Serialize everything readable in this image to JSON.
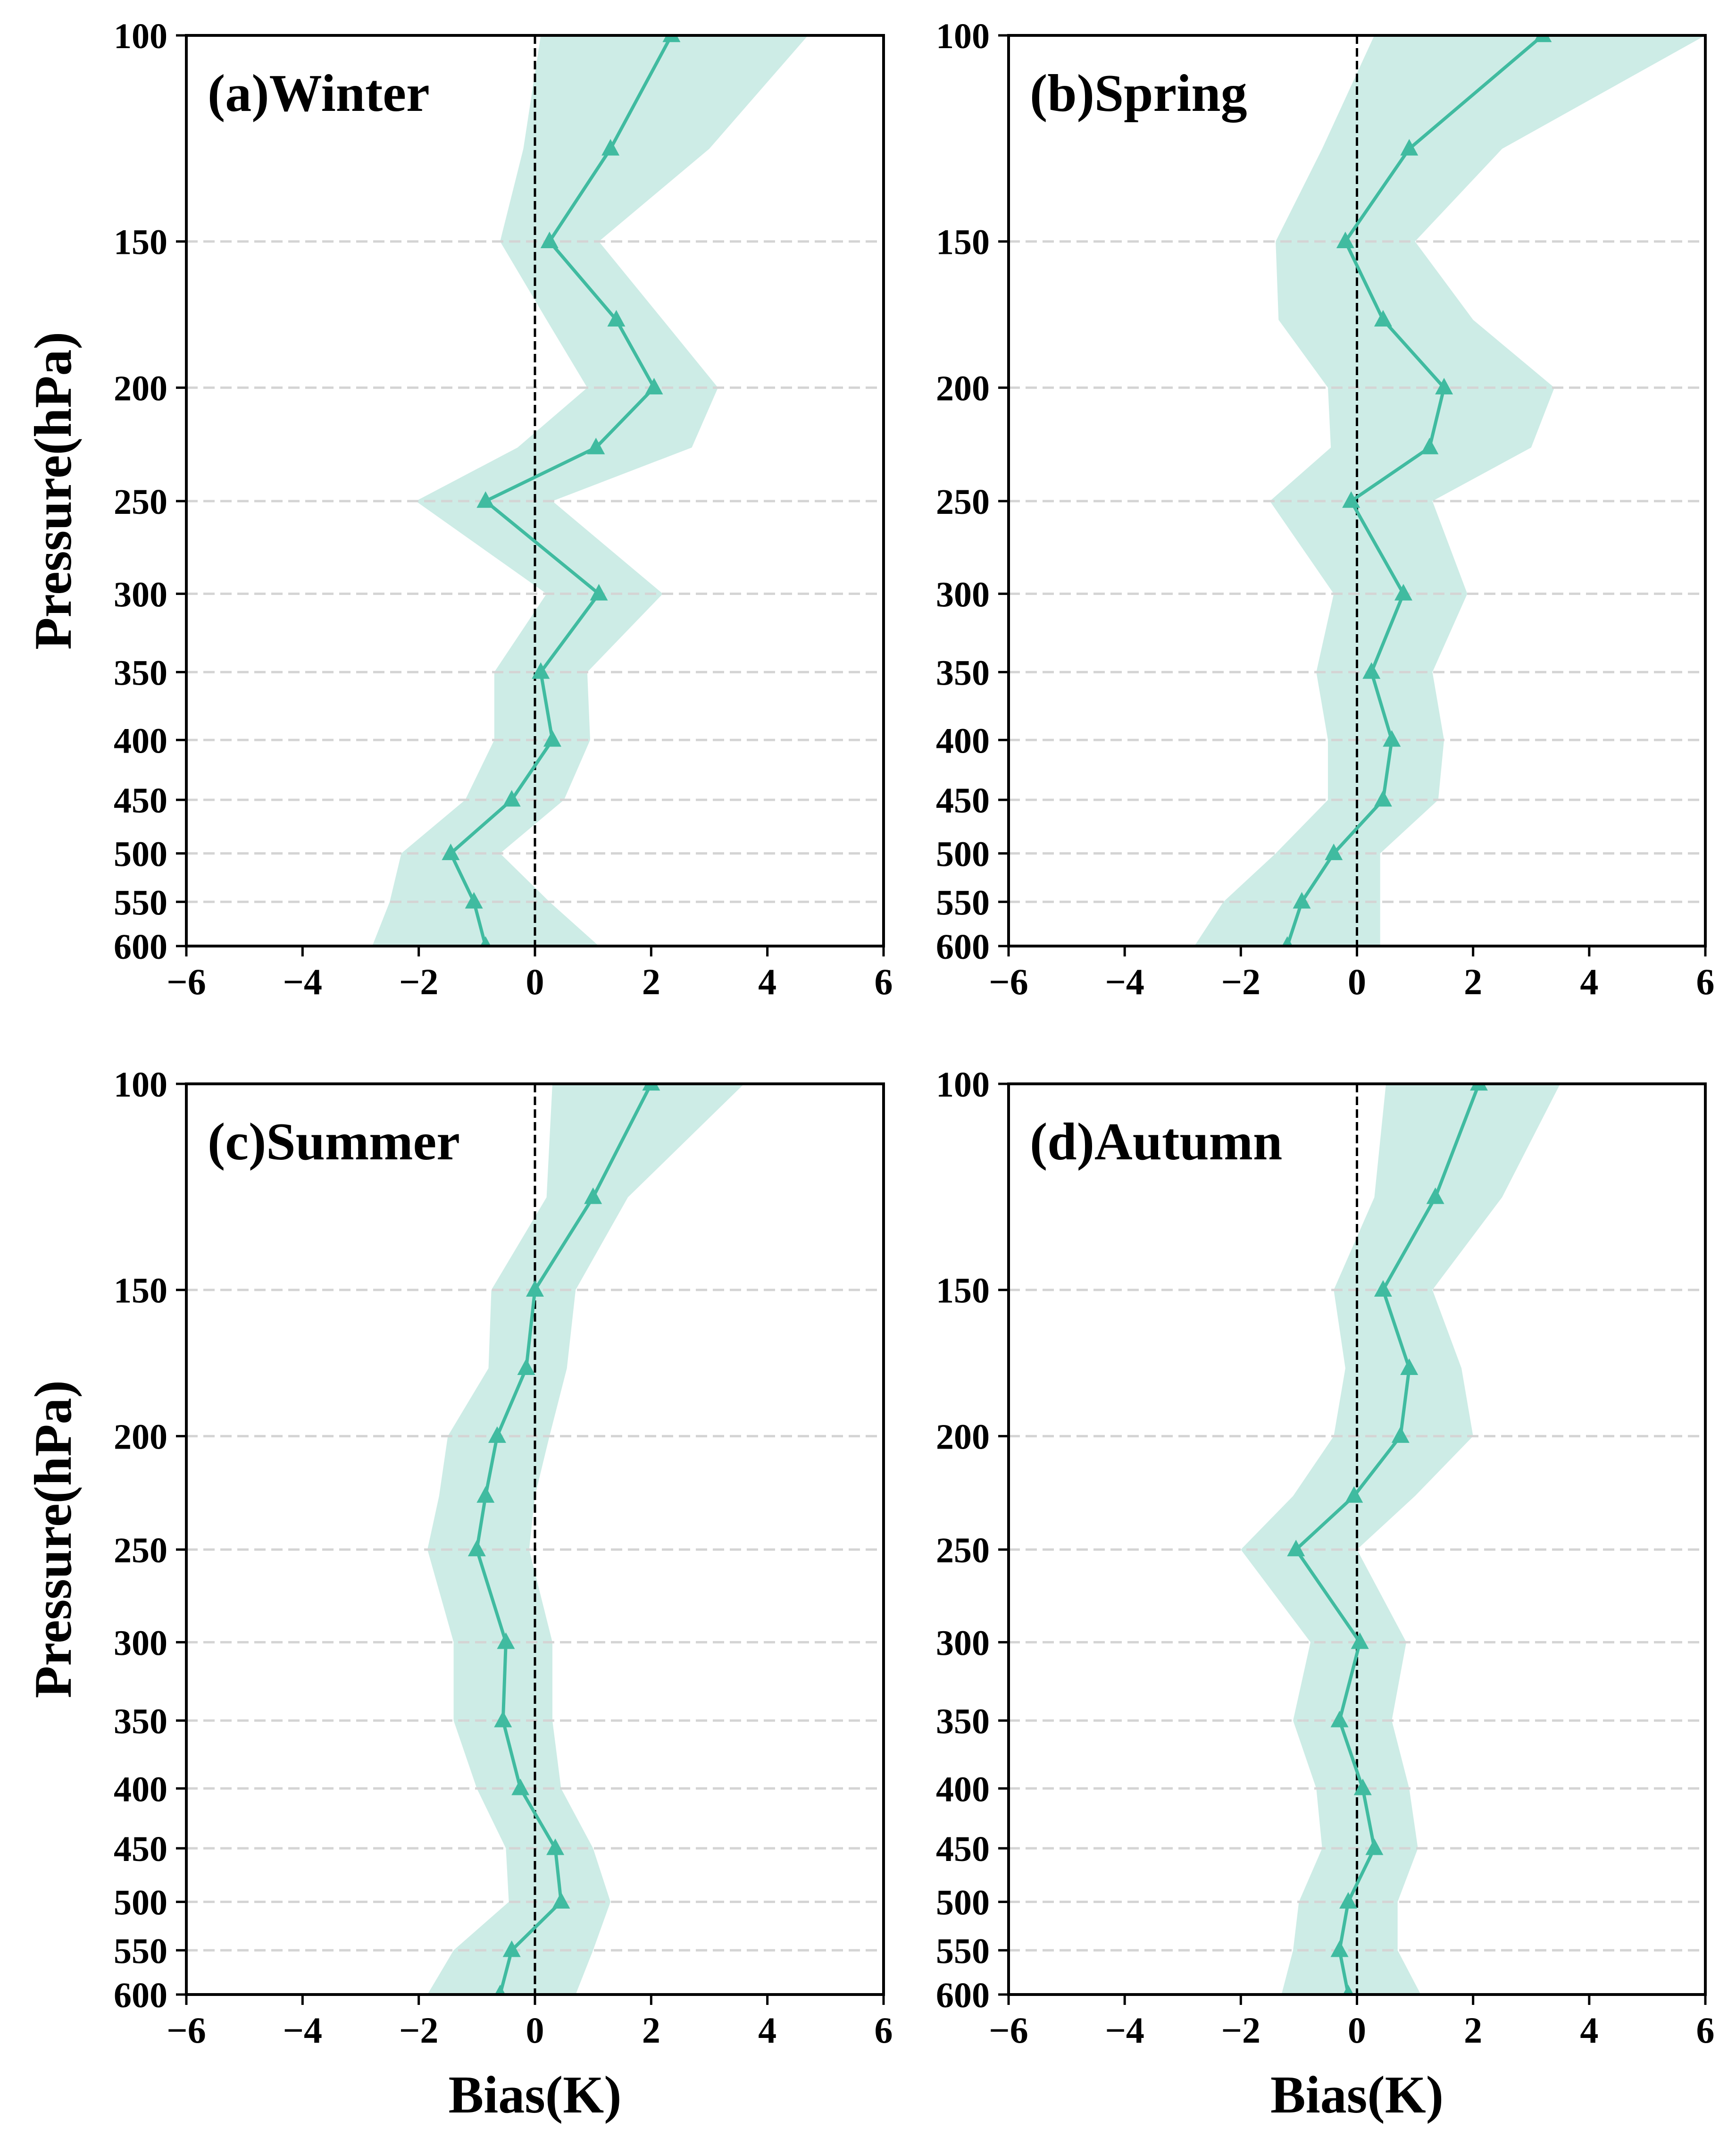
{
  "figure": {
    "colors": {
      "line": "#40bba0",
      "band": "#cdece6",
      "grid": "#d4d4d4",
      "zero_line": "#000000"
    }
  },
  "chart_data": [
    {
      "type": "line",
      "title": "(a)Winter",
      "xlabel": "",
      "ylabel": "Pressure(hPa)",
      "xlim": [
        -6,
        6
      ],
      "ylim": [
        600,
        100
      ],
      "yscale": "log",
      "xticks": [
        "−6",
        "−4",
        "−2",
        "0",
        "2",
        "4",
        "6"
      ],
      "yticks": [
        "100",
        "150",
        "200",
        "250",
        "300",
        "350",
        "400",
        "450",
        "500",
        "550",
        "600"
      ],
      "pressure": [
        100,
        125,
        150,
        175,
        200,
        225,
        250,
        300,
        350,
        400,
        450,
        500,
        550,
        600
      ],
      "series": [
        {
          "name": "mean bias",
          "marker": "triangle",
          "values": [
            2.35,
            1.3,
            0.25,
            1.4,
            2.05,
            1.05,
            -0.85,
            1.1,
            0.1,
            0.3,
            -0.4,
            -1.45,
            -1.05,
            -0.85
          ]
        },
        {
          "name": "lower bound",
          "values": [
            0.1,
            -0.2,
            -0.6,
            0.2,
            0.9,
            -0.3,
            -2.05,
            0.2,
            -0.7,
            -0.7,
            -1.2,
            -2.3,
            -2.5,
            -2.8
          ]
        },
        {
          "name": "upper bound",
          "values": [
            4.7,
            3.0,
            1.1,
            2.2,
            3.15,
            2.7,
            0.3,
            2.2,
            0.9,
            0.95,
            0.5,
            -0.6,
            0.25,
            1.1
          ]
        }
      ],
      "grid": "y-dashed",
      "reference_line": {
        "x": 0,
        "style": "dashed"
      }
    },
    {
      "type": "line",
      "title": "(b)Spring",
      "xlabel": "",
      "ylabel": "",
      "xlim": [
        -6,
        6
      ],
      "ylim": [
        600,
        100
      ],
      "yscale": "log",
      "xticks": [
        "−6",
        "−4",
        "−2",
        "0",
        "2",
        "4",
        "6"
      ],
      "yticks": [
        "100",
        "150",
        "200",
        "250",
        "300",
        "350",
        "400",
        "450",
        "500",
        "550",
        "600"
      ],
      "pressure": [
        100,
        125,
        150,
        175,
        200,
        225,
        250,
        300,
        350,
        400,
        450,
        500,
        550,
        600
      ],
      "series": [
        {
          "name": "mean bias",
          "marker": "triangle",
          "values": [
            3.2,
            0.9,
            -0.2,
            0.45,
            1.5,
            1.25,
            -0.1,
            0.8,
            0.25,
            0.6,
            0.45,
            -0.4,
            -0.95,
            -1.2
          ]
        },
        {
          "name": "lower bound",
          "values": [
            0.3,
            -0.6,
            -1.4,
            -1.35,
            -0.5,
            -0.45,
            -1.5,
            -0.4,
            -0.7,
            -0.5,
            -0.5,
            -1.4,
            -2.3,
            -2.8
          ]
        },
        {
          "name": "upper bound",
          "values": [
            6.0,
            2.5,
            1.0,
            2.0,
            3.4,
            3.0,
            1.3,
            1.9,
            1.3,
            1.5,
            1.4,
            0.4,
            0.4,
            0.4
          ]
        }
      ],
      "grid": "y-dashed",
      "reference_line": {
        "x": 0,
        "style": "dashed"
      }
    },
    {
      "type": "line",
      "title": "(c)Summer",
      "xlabel": "Bias(K)",
      "ylabel": "Pressure(hPa)",
      "xlim": [
        -6,
        6
      ],
      "ylim": [
        600,
        100
      ],
      "yscale": "log",
      "xticks": [
        "−6",
        "−4",
        "−2",
        "0",
        "2",
        "4",
        "6"
      ],
      "yticks": [
        "100",
        "150",
        "200",
        "250",
        "300",
        "350",
        "400",
        "450",
        "500",
        "550",
        "600"
      ],
      "pressure": [
        100,
        125,
        150,
        175,
        200,
        225,
        250,
        300,
        350,
        400,
        450,
        500,
        550,
        600
      ],
      "series": [
        {
          "name": "mean bias",
          "marker": "triangle",
          "values": [
            2.0,
            1.0,
            0.0,
            -0.15,
            -0.65,
            -0.85,
            -1.0,
            -0.5,
            -0.55,
            -0.25,
            0.35,
            0.45,
            -0.4,
            -0.6
          ]
        },
        {
          "name": "lower bound",
          "values": [
            0.3,
            0.2,
            -0.75,
            -0.8,
            -1.5,
            -1.65,
            -1.85,
            -1.4,
            -1.4,
            -1.0,
            -0.5,
            -0.45,
            -1.4,
            -1.85
          ]
        },
        {
          "name": "upper bound",
          "values": [
            3.6,
            1.6,
            0.7,
            0.55,
            0.25,
            0.0,
            -0.1,
            0.3,
            0.3,
            0.45,
            1.0,
            1.3,
            1.0,
            0.7
          ]
        }
      ],
      "grid": "y-dashed",
      "reference_line": {
        "x": 0,
        "style": "dashed"
      }
    },
    {
      "type": "line",
      "title": "(d)Autumn",
      "xlabel": "Bias(K)",
      "ylabel": "",
      "xlim": [
        -6,
        6
      ],
      "ylim": [
        600,
        100
      ],
      "yscale": "log",
      "xticks": [
        "−6",
        "−4",
        "−2",
        "0",
        "2",
        "4",
        "6"
      ],
      "yticks": [
        "100",
        "150",
        "200",
        "250",
        "300",
        "350",
        "400",
        "450",
        "500",
        "550",
        "600"
      ],
      "pressure": [
        100,
        125,
        150,
        175,
        200,
        225,
        250,
        300,
        350,
        400,
        450,
        500,
        550,
        600
      ],
      "series": [
        {
          "name": "mean bias",
          "marker": "triangle",
          "values": [
            2.1,
            1.35,
            0.45,
            0.9,
            0.75,
            -0.05,
            -1.05,
            0.05,
            -0.3,
            0.1,
            0.3,
            -0.15,
            -0.3,
            -0.15
          ]
        },
        {
          "name": "lower bound",
          "values": [
            0.5,
            0.3,
            -0.4,
            -0.2,
            -0.4,
            -1.1,
            -2.0,
            -0.8,
            -1.1,
            -0.7,
            -0.6,
            -1.0,
            -1.1,
            -1.3
          ]
        },
        {
          "name": "upper bound",
          "values": [
            3.5,
            2.5,
            1.3,
            1.8,
            2.0,
            1.0,
            0.0,
            0.85,
            0.6,
            0.9,
            1.05,
            0.7,
            0.7,
            1.1
          ]
        }
      ],
      "grid": "y-dashed",
      "reference_line": {
        "x": 0,
        "style": "dashed"
      }
    }
  ]
}
